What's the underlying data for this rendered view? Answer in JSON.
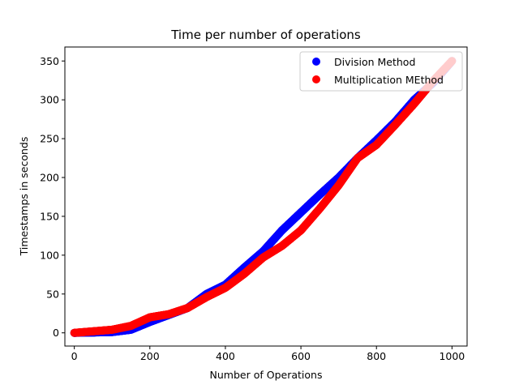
{
  "chart_data": {
    "type": "scatter",
    "title": "Time per number of operations",
    "xlabel": "Number of Operations",
    "ylabel": "Timestamps in seconds",
    "xlim": [
      -25,
      1040
    ],
    "ylim": [
      -17,
      368
    ],
    "xticks": [
      0,
      200,
      400,
      600,
      800,
      1000
    ],
    "yticks": [
      0,
      50,
      100,
      150,
      200,
      250,
      300,
      350
    ],
    "grid": false,
    "legend_position": "top-right",
    "series": [
      {
        "name": "Division Method",
        "color": "#0000ff",
        "points": [
          [
            0,
            0
          ],
          [
            50,
            0.5
          ],
          [
            100,
            1
          ],
          [
            150,
            4
          ],
          [
            200,
            14
          ],
          [
            250,
            23
          ],
          [
            300,
            32
          ],
          [
            350,
            50
          ],
          [
            400,
            62
          ],
          [
            450,
            84
          ],
          [
            500,
            105
          ],
          [
            550,
            132
          ],
          [
            600,
            155
          ],
          [
            650,
            178
          ],
          [
            700,
            200
          ],
          [
            750,
            225
          ],
          [
            800,
            248
          ],
          [
            850,
            272
          ],
          [
            900,
            300
          ],
          [
            950,
            322
          ],
          [
            1000,
            350
          ]
        ]
      },
      {
        "name": "Multiplication MEthod",
        "color": "#ff0000",
        "points": [
          [
            0,
            0
          ],
          [
            50,
            2
          ],
          [
            100,
            4
          ],
          [
            150,
            9
          ],
          [
            200,
            20
          ],
          [
            250,
            24
          ],
          [
            300,
            32
          ],
          [
            350,
            46
          ],
          [
            400,
            58
          ],
          [
            450,
            76
          ],
          [
            500,
            97
          ],
          [
            550,
            112
          ],
          [
            600,
            132
          ],
          [
            650,
            160
          ],
          [
            700,
            190
          ],
          [
            750,
            225
          ],
          [
            800,
            242
          ],
          [
            850,
            268
          ],
          [
            900,
            295
          ],
          [
            950,
            324
          ],
          [
            1000,
            350
          ]
        ]
      }
    ]
  }
}
